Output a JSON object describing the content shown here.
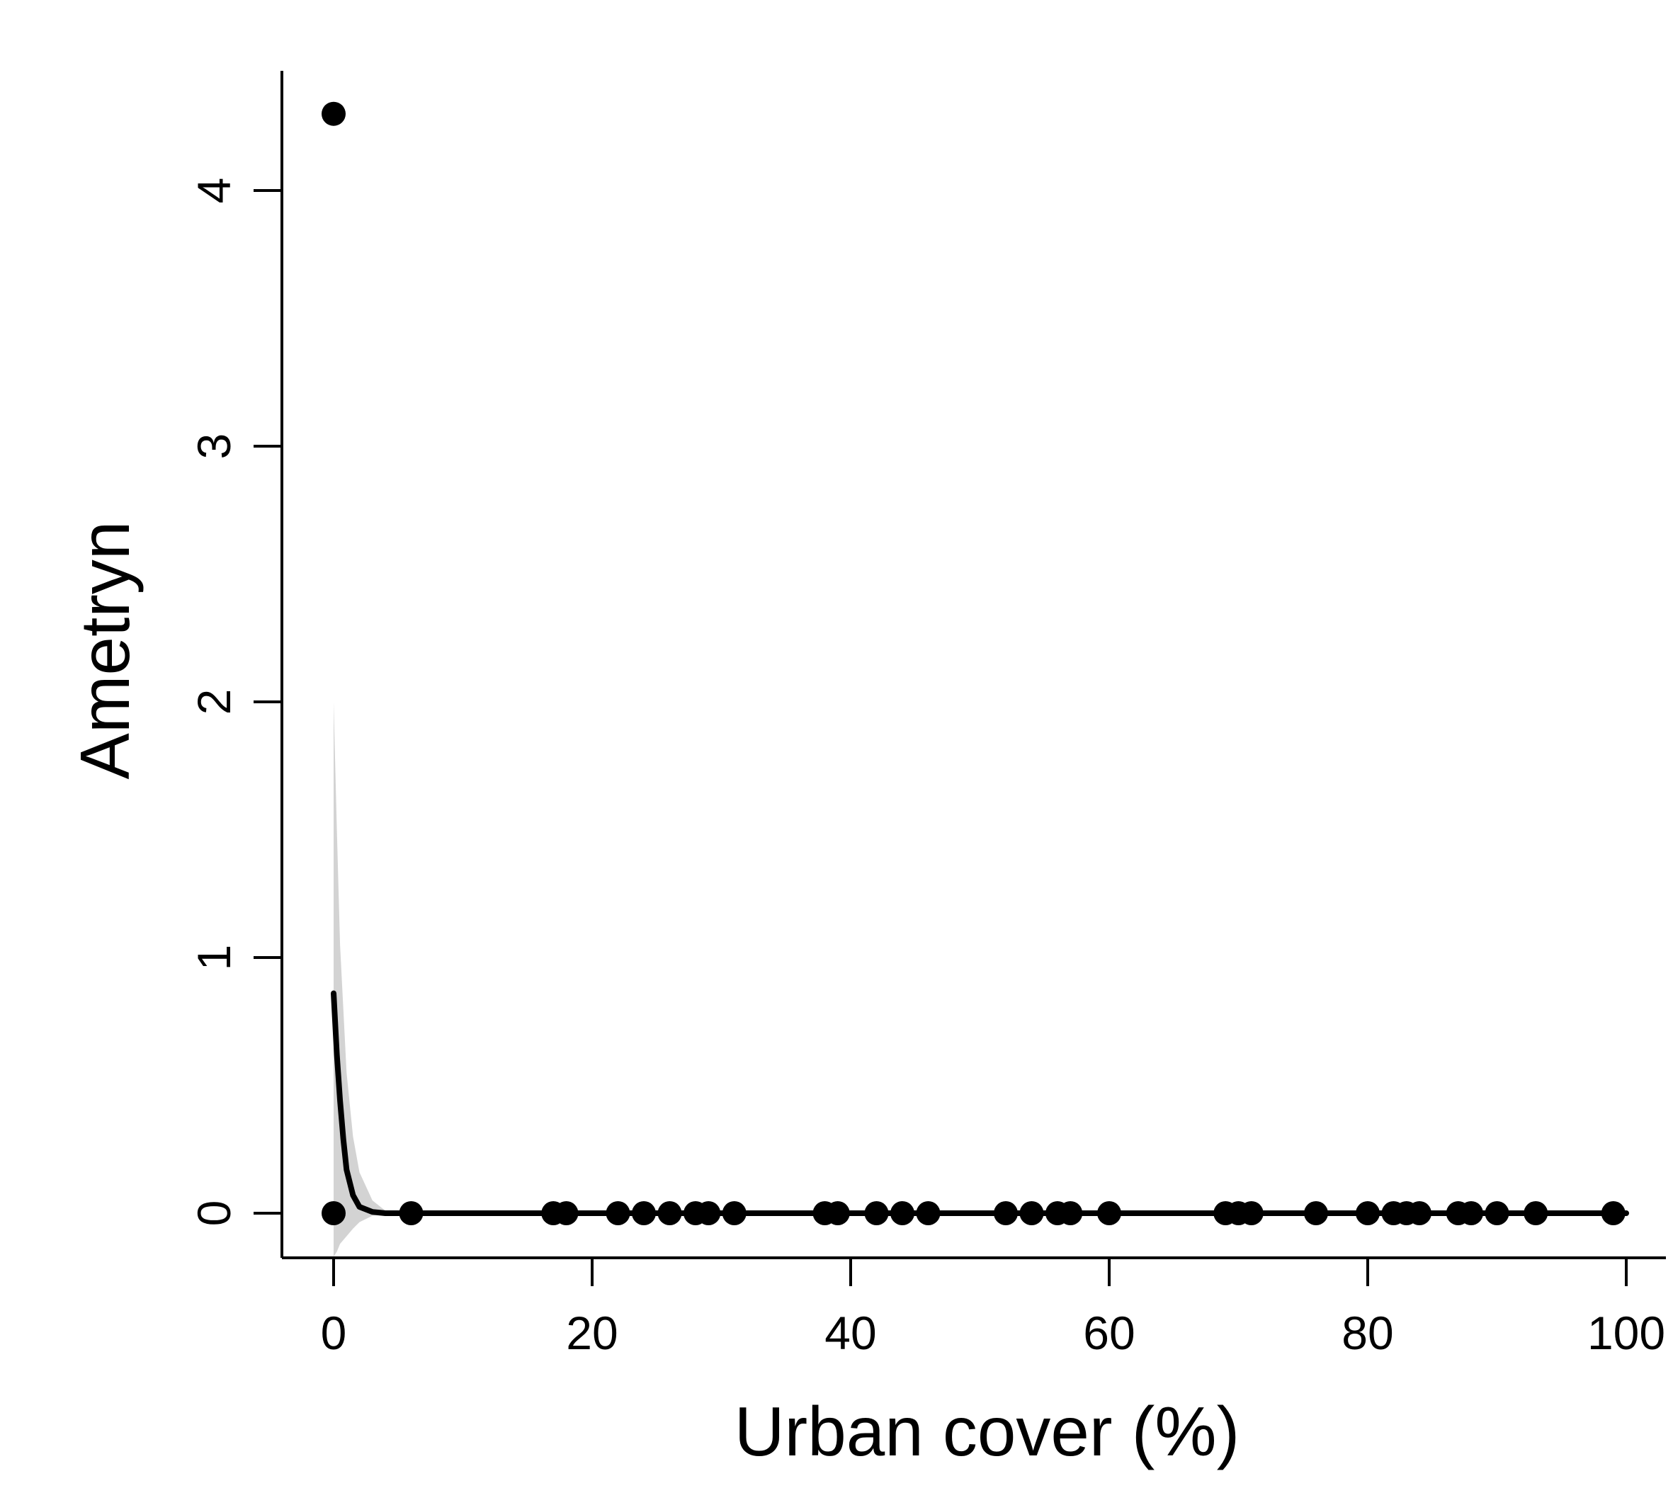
{
  "chart_data": {
    "type": "scatter",
    "title": "",
    "xlabel": "Urban cover (%)",
    "ylabel": "Ametryn",
    "xlim": [
      -4,
      102
    ],
    "ylim": [
      -0.17,
      4.5
    ],
    "xticks": [
      0,
      20,
      40,
      60,
      80,
      100
    ],
    "yticks": [
      0,
      1,
      2,
      3,
      4
    ],
    "grid": false,
    "legend": "none",
    "points": [
      {
        "x": 0,
        "y": 4.3
      },
      {
        "x": 0,
        "y": 0
      },
      {
        "x": 6,
        "y": 0
      },
      {
        "x": 17,
        "y": 0
      },
      {
        "x": 18,
        "y": 0
      },
      {
        "x": 22,
        "y": 0
      },
      {
        "x": 24,
        "y": 0
      },
      {
        "x": 26,
        "y": 0
      },
      {
        "x": 28,
        "y": 0
      },
      {
        "x": 29,
        "y": 0
      },
      {
        "x": 31,
        "y": 0
      },
      {
        "x": 38,
        "y": 0
      },
      {
        "x": 39,
        "y": 0
      },
      {
        "x": 42,
        "y": 0
      },
      {
        "x": 44,
        "y": 0
      },
      {
        "x": 46,
        "y": 0
      },
      {
        "x": 52,
        "y": 0
      },
      {
        "x": 54,
        "y": 0
      },
      {
        "x": 56,
        "y": 0
      },
      {
        "x": 57,
        "y": 0
      },
      {
        "x": 60,
        "y": 0
      },
      {
        "x": 69,
        "y": 0
      },
      {
        "x": 70,
        "y": 0
      },
      {
        "x": 71,
        "y": 0
      },
      {
        "x": 76,
        "y": 0
      },
      {
        "x": 80,
        "y": 0
      },
      {
        "x": 82,
        "y": 0
      },
      {
        "x": 83,
        "y": 0
      },
      {
        "x": 84,
        "y": 0
      },
      {
        "x": 87,
        "y": 0
      },
      {
        "x": 88,
        "y": 0
      },
      {
        "x": 90,
        "y": 0
      },
      {
        "x": 93,
        "y": 0
      },
      {
        "x": 99,
        "y": 0
      }
    ],
    "fit_line": [
      {
        "x": 0,
        "y": 0.86
      },
      {
        "x": 0.25,
        "y": 0.62
      },
      {
        "x": 0.5,
        "y": 0.44
      },
      {
        "x": 0.75,
        "y": 0.29
      },
      {
        "x": 1,
        "y": 0.17
      },
      {
        "x": 1.5,
        "y": 0.07
      },
      {
        "x": 2,
        "y": 0.025
      },
      {
        "x": 3,
        "y": 0.005
      },
      {
        "x": 4,
        "y": 0
      },
      {
        "x": 100,
        "y": 0
      }
    ],
    "confidence_band": [
      {
        "x": 0,
        "lower": -0.17,
        "upper": 2.0
      },
      {
        "x": 0.25,
        "lower": -0.15,
        "upper": 1.5
      },
      {
        "x": 0.5,
        "lower": -0.12,
        "upper": 1.05
      },
      {
        "x": 1,
        "lower": -0.09,
        "upper": 0.55
      },
      {
        "x": 1.5,
        "lower": -0.06,
        "upper": 0.3
      },
      {
        "x": 2,
        "lower": -0.035,
        "upper": 0.16
      },
      {
        "x": 3,
        "lower": -0.01,
        "upper": 0.05
      },
      {
        "x": 4,
        "lower": -0.002,
        "upper": 0.01
      },
      {
        "x": 5,
        "lower": 0,
        "upper": 0
      }
    ]
  }
}
